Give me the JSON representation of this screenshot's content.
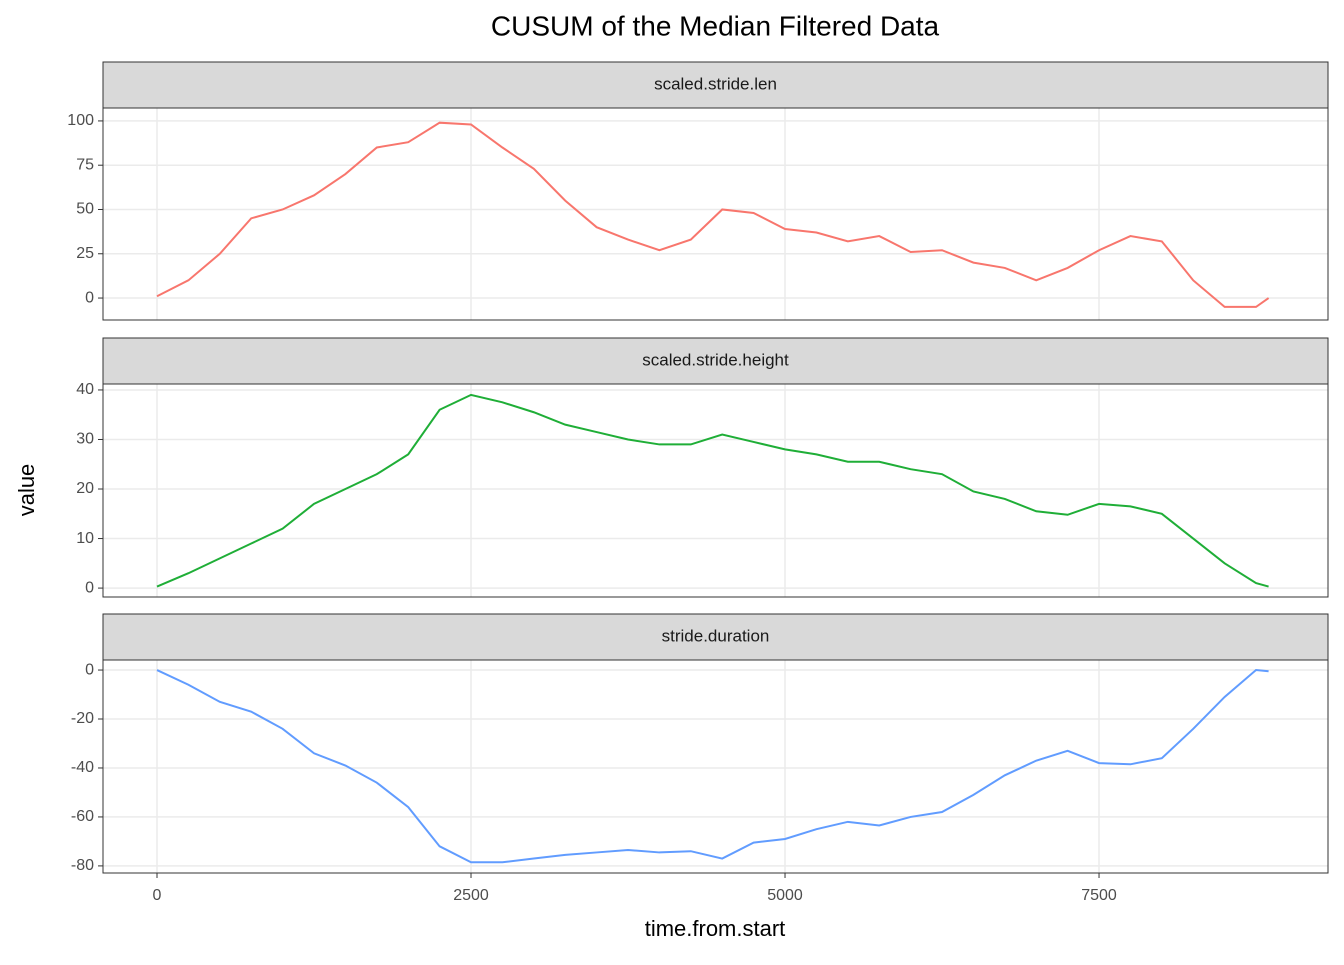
{
  "chart_data": {
    "type": "line",
    "title": "CUSUM of the Median Filtered Data",
    "xlabel": "time.from.start",
    "ylabel": "value",
    "x": [
      0,
      250,
      500,
      750,
      1000,
      1250,
      1500,
      1750,
      2000,
      2250,
      2500,
      2750,
      3000,
      3250,
      3500,
      3750,
      4000,
      4250,
      4500,
      4750,
      5000,
      5250,
      5500,
      5750,
      6000,
      6250,
      6500,
      6750,
      7000,
      7250,
      7500,
      7750,
      8000,
      8250,
      8500,
      8750,
      8850
    ],
    "xlim": [
      -430,
      9323
    ],
    "xticks": [
      0,
      2500,
      5000,
      7500
    ],
    "grid": true,
    "series": [
      {
        "name": "scaled.stride.len",
        "color": "#f8766d",
        "ylim": [
          -12.4,
          107.3
        ],
        "yticks": [
          0,
          25,
          50,
          75,
          100
        ],
        "values": [
          1,
          10,
          25,
          45,
          50,
          58,
          70,
          85,
          88,
          99,
          98,
          85,
          73,
          55,
          40,
          33,
          27,
          33,
          50,
          48,
          39,
          37,
          32,
          35,
          26,
          27,
          20,
          17,
          10,
          17,
          27,
          35,
          32,
          10,
          -5,
          -5,
          0
        ]
      },
      {
        "name": "scaled.stride.height",
        "color": "#1fae37",
        "ylim": [
          -1.8,
          41.2
        ],
        "yticks": [
          0,
          10,
          20,
          30,
          40
        ],
        "values": [
          0.3,
          3,
          6,
          9,
          12,
          17,
          20,
          23,
          27,
          36,
          39,
          37.5,
          35.5,
          33,
          31.5,
          30,
          29,
          29,
          31,
          29.5,
          28,
          27,
          25.5,
          25.5,
          24,
          23,
          19.5,
          18,
          15.5,
          14.8,
          17,
          16.5,
          15,
          10,
          5,
          1,
          0.3
        ]
      },
      {
        "name": "stride.duration",
        "color": "#619cff",
        "ylim": [
          -82.9,
          4.1
        ],
        "yticks": [
          -80,
          -60,
          -40,
          -20,
          0
        ],
        "values": [
          0,
          -6,
          -13,
          -17,
          -24,
          -34,
          -39,
          -46,
          -56,
          -72,
          -78.5,
          -78.5,
          -77,
          -75.5,
          -74.5,
          -73.5,
          -74.5,
          -74,
          -77,
          -70.5,
          -69,
          -65,
          -62,
          -63.5,
          -60,
          -58,
          -51,
          -43,
          -37,
          -33,
          -38,
          -38.5,
          -36,
          -24,
          -11,
          0,
          -0.5
        ]
      }
    ]
  }
}
